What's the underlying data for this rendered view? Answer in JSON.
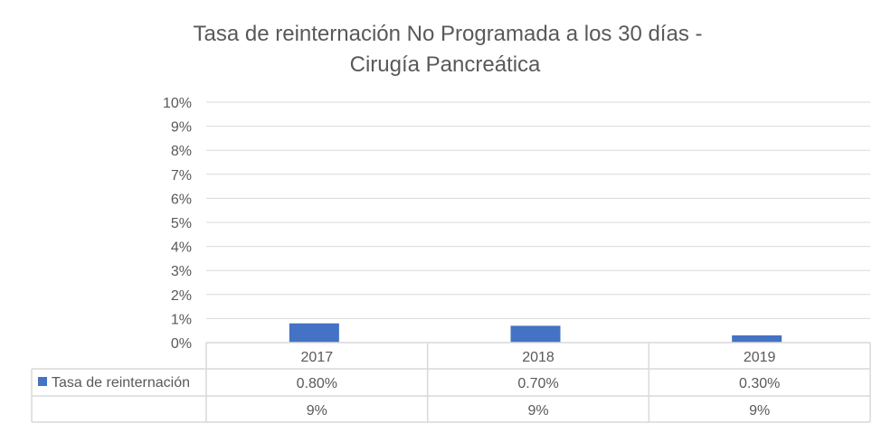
{
  "chart_data": {
    "type": "bar",
    "title_line1": "Tasa de reinternación No Programada a los 30 días -",
    "title_line2": "Cirugía Pancreática",
    "categories": [
      "2017",
      "2018",
      "2019"
    ],
    "series": [
      {
        "name": "Tasa de reinternación",
        "values": [
          0.8,
          0.7,
          0.3
        ],
        "labels": [
          "0.80%",
          "0.70%",
          "0.30%"
        ],
        "color": "#4472C4"
      },
      {
        "name": "",
        "values": [
          9,
          9,
          9
        ],
        "labels": [
          "9%",
          "9%",
          "9%"
        ],
        "color": "#FFFFFF"
      }
    ],
    "ylim": [
      0,
      10
    ],
    "yticks": [
      "0%",
      "1%",
      "2%",
      "3%",
      "4%",
      "5%",
      "6%",
      "7%",
      "8%",
      "9%",
      "10%"
    ],
    "grid": true,
    "legend": "data-table"
  }
}
